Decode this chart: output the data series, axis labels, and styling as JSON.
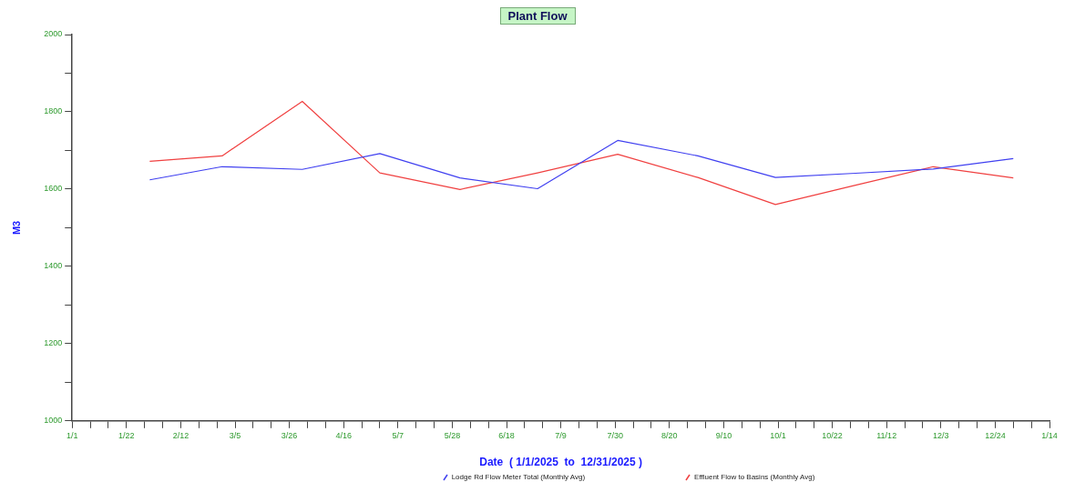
{
  "chart_data": {
    "type": "line",
    "title": "Plant Flow",
    "xlabel": "Date  ( 1/1/2025  to  12/31/2025 )",
    "ylabel": "M3",
    "x": [
      "2025-01-31",
      "2025-02-28",
      "2025-03-31",
      "2025-04-30",
      "2025-05-31",
      "2025-06-30",
      "2025-07-31",
      "2025-08-31",
      "2025-09-30",
      "2025-10-31",
      "2025-11-30",
      "2025-12-31"
    ],
    "series": [
      {
        "name": "Lodge Rd Flow Meter Total (Monthly Avg)",
        "color": "#4040f0",
        "values": [
          1624,
          1658,
          1651,
          1692,
          1629,
          1601,
          1726,
          1686,
          1630,
          1641,
          1652,
          1679
        ]
      },
      {
        "name": "Effluent Flow to Basins (Monthly Avg)",
        "color": "#f04040",
        "values": [
          1672,
          1686,
          1827,
          1642,
          1599,
          1642,
          1690,
          1630,
          1560,
          1610,
          1658,
          1629
        ]
      }
    ],
    "xlim": [
      "2025-01-01",
      "2026-01-14"
    ],
    "xticks": [
      {
        "value": "2025-01-01",
        "label": "1/1"
      },
      {
        "value": "2025-01-08",
        "label": null
      },
      {
        "value": "2025-01-15",
        "label": null
      },
      {
        "value": "2025-01-22",
        "label": "1/22"
      },
      {
        "value": "2025-01-29",
        "label": null
      },
      {
        "value": "2025-02-05",
        "label": null
      },
      {
        "value": "2025-02-12",
        "label": "2/12"
      },
      {
        "value": "2025-02-19",
        "label": null
      },
      {
        "value": "2025-02-26",
        "label": null
      },
      {
        "value": "2025-03-05",
        "label": "3/5"
      },
      {
        "value": "2025-03-12",
        "label": null
      },
      {
        "value": "2025-03-19",
        "label": null
      },
      {
        "value": "2025-03-26",
        "label": "3/26"
      },
      {
        "value": "2025-04-02",
        "label": null
      },
      {
        "value": "2025-04-09",
        "label": null
      },
      {
        "value": "2025-04-16",
        "label": "4/16"
      },
      {
        "value": "2025-04-23",
        "label": null
      },
      {
        "value": "2025-04-30",
        "label": null
      },
      {
        "value": "2025-05-07",
        "label": "5/7"
      },
      {
        "value": "2025-05-14",
        "label": null
      },
      {
        "value": "2025-05-21",
        "label": null
      },
      {
        "value": "2025-05-28",
        "label": "5/28"
      },
      {
        "value": "2025-06-04",
        "label": null
      },
      {
        "value": "2025-06-11",
        "label": null
      },
      {
        "value": "2025-06-18",
        "label": "6/18"
      },
      {
        "value": "2025-06-25",
        "label": null
      },
      {
        "value": "2025-07-02",
        "label": null
      },
      {
        "value": "2025-07-09",
        "label": "7/9"
      },
      {
        "value": "2025-07-16",
        "label": null
      },
      {
        "value": "2025-07-23",
        "label": null
      },
      {
        "value": "2025-07-30",
        "label": "7/30"
      },
      {
        "value": "2025-08-06",
        "label": null
      },
      {
        "value": "2025-08-13",
        "label": null
      },
      {
        "value": "2025-08-20",
        "label": "8/20"
      },
      {
        "value": "2025-08-27",
        "label": null
      },
      {
        "value": "2025-09-03",
        "label": null
      },
      {
        "value": "2025-09-10",
        "label": "9/10"
      },
      {
        "value": "2025-09-17",
        "label": null
      },
      {
        "value": "2025-09-24",
        "label": null
      },
      {
        "value": "2025-10-01",
        "label": "10/1"
      },
      {
        "value": "2025-10-08",
        "label": null
      },
      {
        "value": "2025-10-15",
        "label": null
      },
      {
        "value": "2025-10-22",
        "label": "10/22"
      },
      {
        "value": "2025-10-29",
        "label": null
      },
      {
        "value": "2025-11-05",
        "label": null
      },
      {
        "value": "2025-11-12",
        "label": "11/12"
      },
      {
        "value": "2025-11-19",
        "label": null
      },
      {
        "value": "2025-11-26",
        "label": null
      },
      {
        "value": "2025-12-03",
        "label": "12/3"
      },
      {
        "value": "2025-12-10",
        "label": null
      },
      {
        "value": "2025-12-17",
        "label": null
      },
      {
        "value": "2025-12-24",
        "label": "12/24"
      },
      {
        "value": "2025-12-31",
        "label": null
      },
      {
        "value": "2026-01-07",
        "label": null
      },
      {
        "value": "2026-01-14",
        "label": "1/14"
      }
    ],
    "ylim": [
      1000,
      2000
    ],
    "yticks": [
      1000,
      {
        "value": 1100,
        "label": null
      },
      1200,
      {
        "value": 1300,
        "label": null
      },
      1400,
      {
        "value": 1500,
        "label": null
      },
      1600,
      {
        "value": 1700,
        "label": null
      },
      1800,
      {
        "value": 1900,
        "label": null
      },
      2000
    ],
    "grid": false,
    "legend": "bottom",
    "marker": "none",
    "line_style": "solid"
  }
}
